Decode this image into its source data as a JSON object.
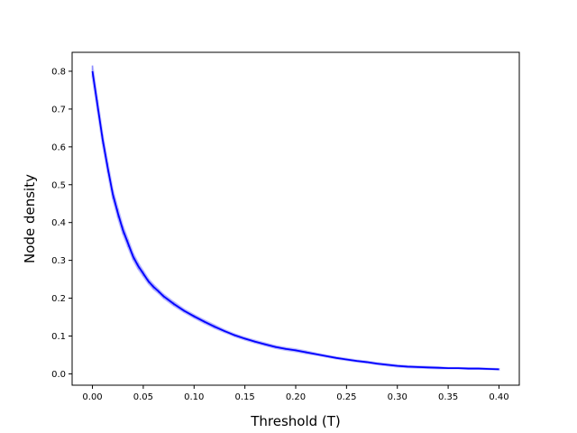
{
  "chart_data": {
    "type": "line",
    "title": "",
    "xlabel": "Threshold (T)",
    "ylabel": "Node density",
    "xlim": [
      -0.02,
      0.42
    ],
    "ylim": [
      -0.03,
      0.85
    ],
    "xticks": [
      0.0,
      0.05,
      0.1,
      0.15,
      0.2,
      0.25,
      0.3,
      0.35,
      0.4
    ],
    "xtick_labels": [
      "0.00",
      "0.05",
      "0.10",
      "0.15",
      "0.20",
      "0.25",
      "0.30",
      "0.35",
      "0.40"
    ],
    "yticks": [
      0.0,
      0.1,
      0.2,
      0.3,
      0.4,
      0.5,
      0.6,
      0.7,
      0.8
    ],
    "ytick_labels": [
      "0.0",
      "0.1",
      "0.2",
      "0.3",
      "0.4",
      "0.5",
      "0.6",
      "0.7",
      "0.8"
    ],
    "grid": false,
    "series_color": "#0000ff",
    "error_band_color": "#8080ff",
    "series": [
      {
        "x": [
          0.0,
          0.005,
          0.01,
          0.015,
          0.02,
          0.025,
          0.03,
          0.035,
          0.04,
          0.045,
          0.05,
          0.055,
          0.06,
          0.065,
          0.07,
          0.08,
          0.09,
          0.1,
          0.11,
          0.12,
          0.13,
          0.14,
          0.15,
          0.16,
          0.17,
          0.18,
          0.19,
          0.2,
          0.21,
          0.22,
          0.23,
          0.24,
          0.25,
          0.26,
          0.27,
          0.28,
          0.29,
          0.3,
          0.31,
          0.32,
          0.33,
          0.34,
          0.35,
          0.36,
          0.37,
          0.38,
          0.39,
          0.4
        ],
        "y": [
          0.8,
          0.71,
          0.62,
          0.545,
          0.475,
          0.425,
          0.38,
          0.345,
          0.31,
          0.285,
          0.265,
          0.245,
          0.23,
          0.218,
          0.205,
          0.185,
          0.167,
          0.152,
          0.138,
          0.125,
          0.113,
          0.102,
          0.093,
          0.085,
          0.078,
          0.071,
          0.066,
          0.062,
          0.057,
          0.052,
          0.047,
          0.042,
          0.038,
          0.034,
          0.031,
          0.027,
          0.024,
          0.021,
          0.019,
          0.018,
          0.017,
          0.016,
          0.015,
          0.015,
          0.014,
          0.014,
          0.013,
          0.012
        ],
        "error": [
          0.015,
          0.014,
          0.013,
          0.013,
          0.012,
          0.012,
          0.011,
          0.01,
          0.009,
          0.008,
          0.007,
          0.006,
          0.006,
          0.005,
          0.005,
          0.005,
          0.004,
          0.004,
          0.004,
          0.004,
          0.003,
          0.003,
          0.003,
          0.003,
          0.003,
          0.003,
          0.003,
          0.003,
          0.003,
          0.002,
          0.002,
          0.002,
          0.002,
          0.002,
          0.002,
          0.002,
          0.002,
          0.002,
          0.002,
          0.002,
          0.002,
          0.002,
          0.001,
          0.001,
          0.001,
          0.001,
          0.001,
          0.001
        ]
      }
    ]
  }
}
